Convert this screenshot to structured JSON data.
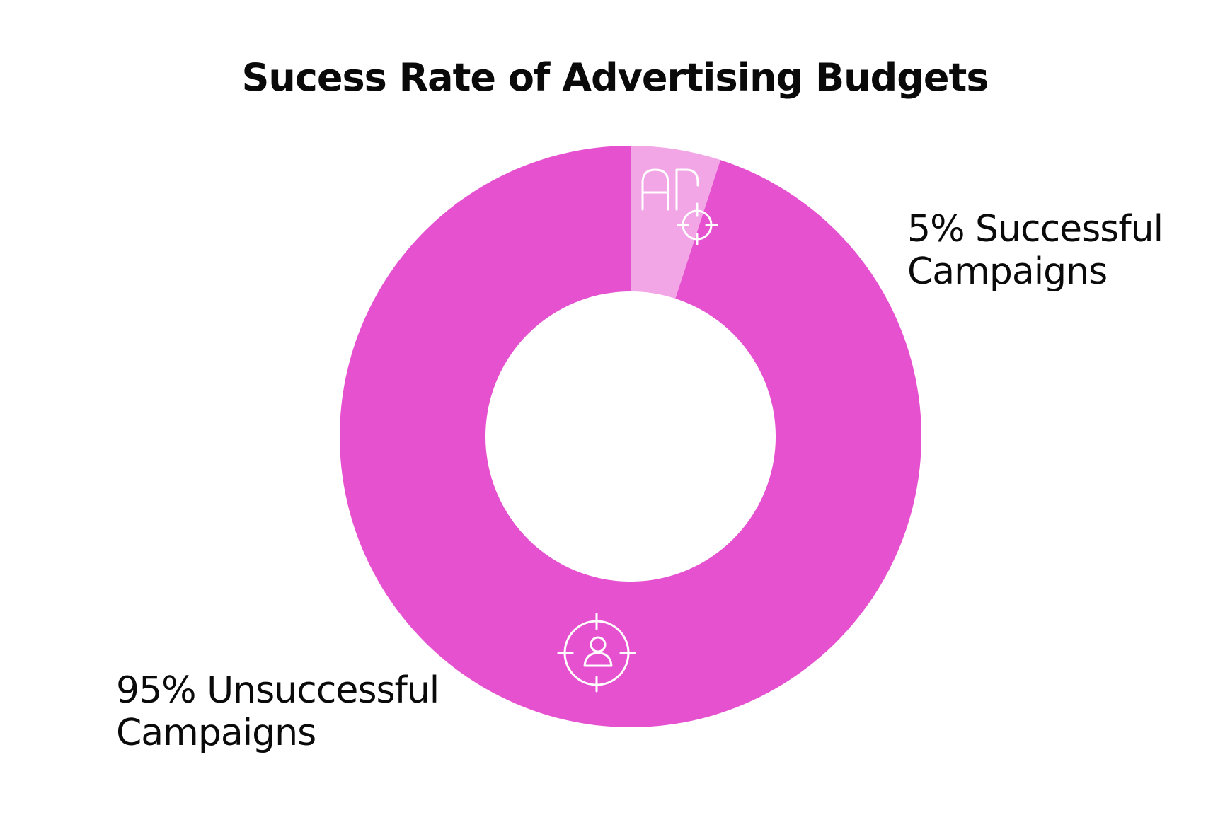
{
  "chart_data": {
    "type": "pie",
    "title": "Sucess Rate of Advertising Budgets",
    "donut": true,
    "slices": [
      {
        "label_line1": "5% Successful",
        "label_line2": "Campaigns",
        "value": 5,
        "color": "#f2a6e6",
        "icon": "ad-target-icon"
      },
      {
        "label_line1": "95% Unsuccessful",
        "label_line2": "Campaigns",
        "value": 95,
        "color": "#e651d0",
        "icon": "user-target-icon"
      }
    ]
  }
}
